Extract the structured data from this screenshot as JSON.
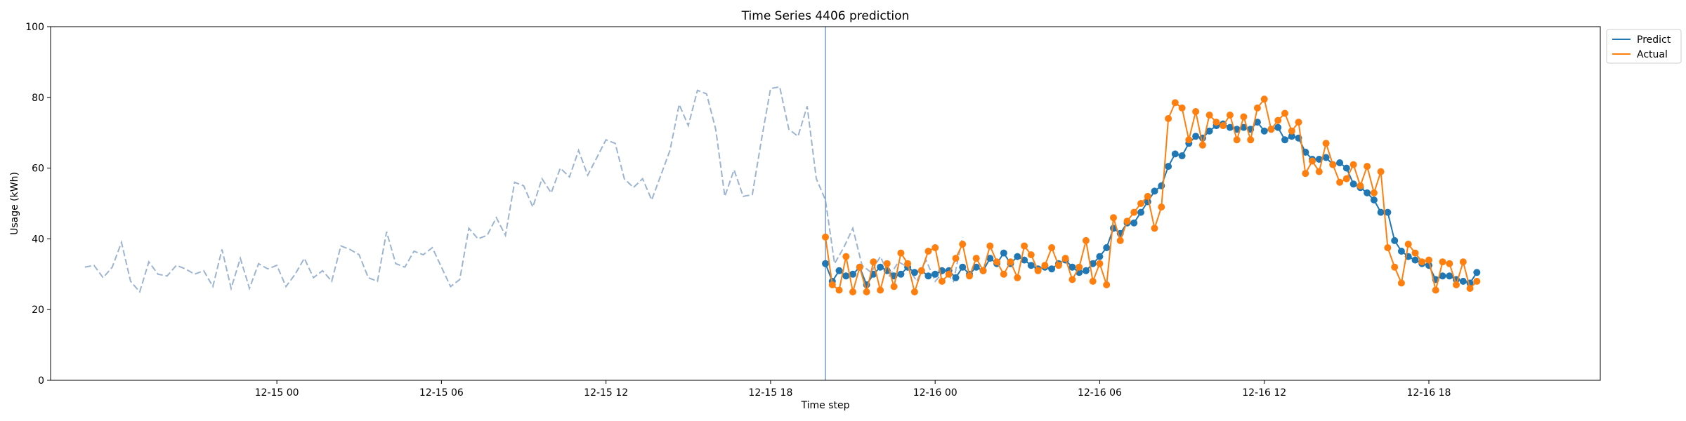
{
  "chart_data": {
    "type": "line",
    "title": "Time Series 4406 prediction",
    "xlabel": "Time step",
    "ylabel": "Usage (kWh)",
    "ylim": [
      0,
      100
    ],
    "yticks": [
      0,
      20,
      40,
      60,
      80,
      100
    ],
    "xlim": [
      "2024-12-14 15:45",
      "2024-12-17 00:15"
    ],
    "xticks": [
      "2024-12-15 00:00",
      "2024-12-15 06:00",
      "2024-12-15 12:00",
      "2024-12-15 18:00",
      "2024-12-16 00:00",
      "2024-12-16 06:00",
      "2024-12-16 12:00",
      "2024-12-16 18:00"
    ],
    "xtick_labels": [
      "12-15 00",
      "12-15 06",
      "12-15 12",
      "12-15 18",
      "12-16 00",
      "12-16 06",
      "12-16 12",
      "12-16 18"
    ],
    "split_time": "2024-12-15 20:00",
    "legend_position": "top-right",
    "colors": {
      "history": "#9db4d0",
      "predict": "#1f77b4",
      "actual": "#ff7f0e",
      "split_line": "#7a9cc6"
    },
    "history": {
      "start": "2024-12-14 17:00",
      "step_minutes": 20,
      "values": [
        32,
        32.5,
        29,
        32,
        39,
        28,
        25,
        33.5,
        30,
        29.5,
        32.5,
        31.5,
        30,
        31,
        26.5,
        37,
        26,
        34.5,
        26,
        33,
        31.5,
        32.5,
        26.5,
        30,
        34.5,
        29,
        31,
        28,
        38,
        37,
        35.5,
        29,
        28,
        42,
        33,
        32,
        36.5,
        35.5,
        37.5,
        32,
        26.5,
        28.5,
        43,
        40,
        41,
        46,
        41,
        56,
        55,
        49,
        57,
        53,
        60,
        57.5,
        65,
        58,
        63,
        68,
        67,
        57,
        54.5,
        57,
        51,
        58,
        65,
        78,
        72,
        82,
        81,
        71,
        52,
        59.5,
        52,
        52.5,
        68,
        82.5,
        83,
        71,
        69,
        77.5,
        57,
        51,
        33,
        37.5,
        43,
        32.5,
        30.5,
        35,
        29.5,
        33.5,
        32,
        28,
        34,
        28,
        31,
        28,
        40.5
      ]
    },
    "series": [
      {
        "name": "Predict",
        "start": "2024-12-15 20:00",
        "step_minutes": 15,
        "values": [
          33,
          28,
          31,
          29.5,
          30,
          32,
          27,
          30,
          32,
          31,
          29.5,
          30,
          32,
          30.5,
          31,
          29.5,
          30,
          31,
          31,
          29,
          32,
          30,
          32,
          31,
          34.5,
          33,
          36,
          33,
          35,
          34,
          32.5,
          31.5,
          32,
          31.5,
          33,
          34,
          32,
          30.5,
          31,
          33,
          35,
          37.5,
          43,
          41.5,
          44.5,
          44.5,
          47.5,
          50.5,
          53.5,
          55,
          60.5,
          64,
          63.5,
          67,
          69,
          68.5,
          70.5,
          72,
          72.5,
          71.5,
          71,
          71.5,
          71,
          73,
          70.5,
          71,
          71.5,
          68,
          69,
          68.5,
          64.5,
          62.5,
          62.5,
          63,
          61,
          61.5,
          60,
          55.5,
          54.5,
          53,
          51,
          47.5,
          47.5,
          39.5,
          36.5,
          35,
          34,
          33,
          32.5,
          28.5,
          29.5,
          29.5,
          28.5,
          28,
          27.5,
          30.5
        ]
      },
      {
        "name": "Actual",
        "start": "2024-12-15 20:00",
        "step_minutes": 15,
        "values": [
          40.5,
          27,
          25.5,
          35,
          25,
          32,
          25,
          33.5,
          25.5,
          33,
          26.5,
          36,
          33,
          25,
          31,
          36.5,
          37.5,
          28,
          30,
          34.5,
          38.5,
          29.5,
          34.5,
          31,
          38,
          33.5,
          30,
          33.5,
          29,
          38,
          35.5,
          31,
          32.5,
          37.5,
          32.5,
          34.5,
          28.5,
          32,
          39.5,
          28,
          33,
          27,
          46,
          39.5,
          45,
          47.5,
          50,
          52,
          43,
          49,
          74,
          78.5,
          77,
          68,
          76,
          66.5,
          75,
          73,
          72,
          75,
          68,
          74.5,
          68,
          77,
          79.5,
          71,
          73.5,
          75.5,
          70.5,
          73,
          58.5,
          62,
          59,
          67,
          61,
          56,
          57,
          61,
          55,
          60.5,
          53,
          59,
          37.5,
          32,
          27.5,
          38.5,
          36,
          33.5,
          34,
          25.5,
          33.5,
          33,
          27,
          33.5,
          26,
          28
        ]
      }
    ]
  }
}
